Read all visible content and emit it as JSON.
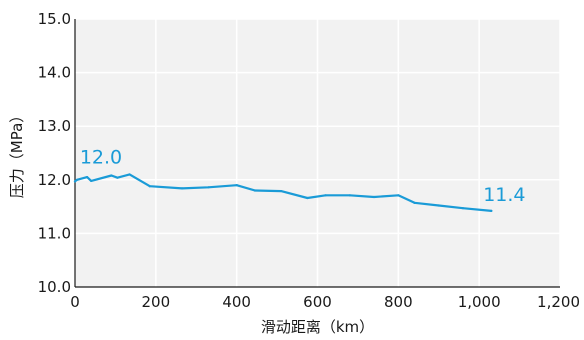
{
  "chart_data": {
    "type": "line",
    "xlabel": "滑动距离（km）",
    "ylabel": "压力（MPa）",
    "xlim": [
      0,
      1200
    ],
    "ylim": [
      10.0,
      15.0
    ],
    "x_ticks": [
      0,
      200,
      400,
      600,
      800,
      1000,
      1200
    ],
    "x_tick_labels": [
      "0",
      "200",
      "400",
      "600",
      "800",
      "1,000",
      "1,200"
    ],
    "y_ticks": [
      10.0,
      11.0,
      12.0,
      13.0,
      14.0,
      15.0
    ],
    "y_tick_labels": [
      "10.0",
      "11.0",
      "12.0",
      "13.0",
      "14.0",
      "15.0"
    ],
    "grid": true,
    "plot_background": "#f2f2f2",
    "grid_color": "#ffffff",
    "axis_color": "#1a1a1a",
    "series": [
      {
        "color": "#1a9bd7",
        "x": [
          0,
          5,
          30,
          40,
          90,
          105,
          135,
          185,
          265,
          330,
          400,
          445,
          510,
          575,
          620,
          680,
          740,
          800,
          840,
          900,
          960,
          1030
        ],
        "y": [
          11.97,
          12.0,
          12.05,
          11.98,
          12.08,
          12.04,
          12.1,
          11.88,
          11.84,
          11.86,
          11.9,
          11.8,
          11.79,
          11.66,
          11.71,
          11.71,
          11.68,
          11.71,
          11.57,
          11.52,
          11.47,
          11.42
        ]
      }
    ],
    "annotations": [
      {
        "text": "12.0",
        "x": 12,
        "y": 12.3,
        "color": "#1a9bd7"
      },
      {
        "text": "11.4",
        "x": 1010,
        "y": 11.6,
        "color": "#1a9bd7"
      }
    ]
  }
}
